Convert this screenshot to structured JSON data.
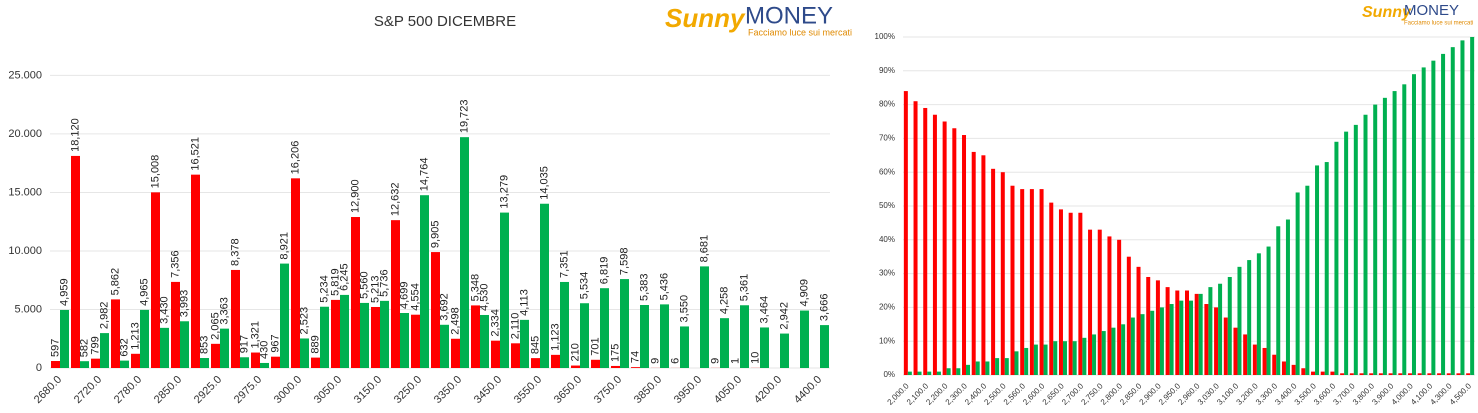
{
  "logo": {
    "sunny": "Sunny",
    "money": "MONEY",
    "tagline": "Facciamo luce sui mercati"
  },
  "chart_data": [
    {
      "type": "bar",
      "title": "S&P 500 DICEMBRE",
      "categories": [
        "2680.0",
        null,
        "2720.0",
        null,
        "2780.0",
        null,
        "2850.0",
        null,
        "2925.0",
        null,
        "2975.0",
        null,
        "3000.0",
        null,
        "3050.0",
        null,
        "3150.0",
        null,
        "3250.0",
        null,
        "3350.0",
        null,
        "3450.0",
        null,
        "3550.0",
        null,
        "3650.0",
        null,
        "3750.0",
        null,
        "3850.0",
        null,
        "3950.0",
        null,
        "4050.0",
        null,
        "4200.0",
        null,
        "4400.0"
      ],
      "series": [
        {
          "color": "#ff0000",
          "values": [
            597,
            18120,
            799,
            5862,
            1213,
            15008,
            7356,
            16521,
            2065,
            8378,
            1321,
            967,
            16206,
            889,
            5819,
            12900,
            5213,
            12632,
            4554,
            9905,
            2498,
            5348,
            2334,
            2110,
            845,
            1123,
            210,
            701,
            175,
            74,
            9,
            6,
            null,
            9,
            1,
            10,
            null,
            null,
            null
          ],
          "value_labels": [
            "597",
            "18,120",
            "799",
            "5,862",
            "1,213",
            "15,008",
            "7,356",
            "16,521",
            "2,065",
            "8,378",
            "1,321",
            "967",
            "16,206",
            "889",
            "5,819",
            "12,900",
            "5,213",
            "12,632",
            "4,554",
            "9,905",
            "2,498",
            "5,348",
            "2,334",
            "2,110",
            "845",
            "1,123",
            "210",
            "701",
            "175",
            "74",
            "9",
            "6",
            null,
            "9",
            "1",
            "10",
            null,
            null,
            null
          ]
        },
        {
          "color": "#00b050",
          "values": [
            4959,
            582,
            2982,
            632,
            4965,
            3430,
            3993,
            853,
            3363,
            917,
            430,
            8921,
            2523,
            5234,
            6245,
            5560,
            5736,
            4699,
            14764,
            3692,
            19723,
            4530,
            13279,
            4113,
            14035,
            7351,
            5534,
            6819,
            7598,
            5383,
            5436,
            3550,
            8681,
            4258,
            5361,
            3464,
            2942,
            4909,
            3666
          ],
          "value_labels": [
            "4,959",
            "582",
            "2,982",
            "632",
            "4,965",
            "3,430",
            "3,993",
            "853",
            "3,363",
            "917",
            "430",
            "8,921",
            "2,523",
            "5,234",
            "6,245",
            "5,560",
            "5,736",
            "4,699",
            "14,764",
            "3,692",
            "19,723",
            "4,530",
            "13,279",
            "4,113",
            "14,035",
            "7,351",
            "5,534",
            "6,819",
            "7,598",
            "5,383",
            "5,436",
            "3,550",
            "8,681",
            "4,258",
            "5,361",
            "3,464",
            "2,942",
            "4,909",
            "3,666"
          ]
        }
      ],
      "ylim": [
        0,
        27000
      ],
      "yticks": [
        0,
        {
          "value": 5000,
          "label": "5.000"
        },
        {
          "value": 10000,
          "label": "10.000"
        },
        {
          "value": 15000,
          "label": "15.000"
        },
        {
          "value": 20000,
          "label": "20.000"
        },
        {
          "value": 25000,
          "label": "25.000"
        }
      ],
      "grid": true
    },
    {
      "type": "bar",
      "categories": [
        "2,000.0",
        null,
        "2,100.0",
        null,
        "2,200.0",
        null,
        "2,300.0",
        null,
        "2,400.0",
        null,
        "2,500.0",
        null,
        "2,560.0",
        null,
        "2,600.0",
        null,
        "2,650.0",
        null,
        "2,700.0",
        null,
        "2,750.0",
        null,
        "2,800.0",
        null,
        "2,850.0",
        null,
        "2,900.0",
        null,
        "2,950.0",
        null,
        "2,960.0",
        null,
        "3,030.0",
        null,
        "3,100.0",
        null,
        "3,200.0",
        null,
        "3,300.0",
        null,
        "3,400.0",
        null,
        "3,500.0",
        null,
        "3,600.0",
        null,
        "3,700.0",
        null,
        "3,800.0",
        null,
        "3,900.0",
        null,
        "4,000.0",
        null,
        "4,100.0",
        null,
        "4,300.0",
        null,
        "4,500.0"
      ],
      "series": [
        {
          "color": "#ff0000",
          "values": [
            84,
            81,
            79,
            77,
            75,
            73,
            71,
            66,
            65,
            61,
            60,
            56,
            55,
            55,
            55,
            51,
            49,
            48,
            48,
            43,
            43,
            41,
            40,
            35,
            32,
            29,
            28,
            26,
            25,
            25,
            24,
            21,
            20,
            17,
            14,
            12,
            9,
            8,
            6,
            4,
            3,
            2,
            1,
            1,
            1,
            0.5,
            0.5,
            0.5,
            0.5,
            0.5,
            0.5,
            0.5,
            0.5,
            0.5,
            0.5,
            0.5,
            0.5,
            0.5,
            0.5
          ]
        },
        {
          "color": "#00b050",
          "values": [
            1,
            1,
            1,
            1,
            2,
            2,
            3,
            4,
            4,
            5,
            5,
            7,
            8,
            9,
            9,
            10,
            10,
            10,
            11,
            12,
            13,
            14,
            15,
            17,
            18,
            19,
            20,
            21,
            22,
            22,
            24,
            26,
            27,
            29,
            32,
            34,
            36,
            38,
            44,
            46,
            54,
            56,
            62,
            63,
            69,
            72,
            74,
            77,
            80,
            82,
            84,
            86,
            89,
            91,
            93,
            95,
            97,
            99,
            100
          ]
        }
      ],
      "ylim": [
        0,
        100
      ],
      "yticks": [
        {
          "value": 0,
          "label": "0%"
        },
        {
          "value": 10,
          "label": "10%"
        },
        {
          "value": 20,
          "label": "20%"
        },
        {
          "value": 30,
          "label": "30%"
        },
        {
          "value": 40,
          "label": "40%"
        },
        {
          "value": 50,
          "label": "50%"
        },
        {
          "value": 60,
          "label": "60%"
        },
        {
          "value": 70,
          "label": "70%"
        },
        {
          "value": 80,
          "label": "80%"
        },
        {
          "value": 90,
          "label": "90%"
        },
        {
          "value": 100,
          "label": "100%"
        }
      ],
      "grid": true
    }
  ]
}
